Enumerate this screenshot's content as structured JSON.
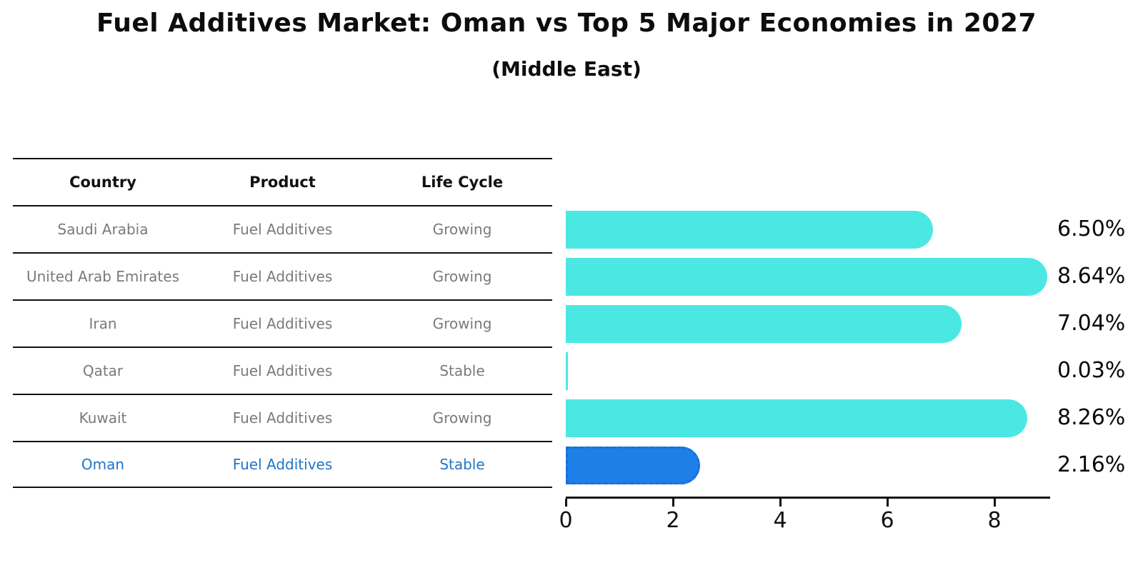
{
  "title": "Fuel Additives Market: Oman vs Top 5 Major Economies in 2027",
  "subtitle": "(Middle East)",
  "table": {
    "headers": {
      "country": "Country",
      "product": "Product",
      "life_cycle": "Life Cycle"
    },
    "rows": [
      {
        "country": "Saudi Arabia",
        "product": "Fuel Additives",
        "life_cycle": "Growing",
        "highlight": false
      },
      {
        "country": "United Arab Emirates",
        "product": "Fuel Additives",
        "life_cycle": "Growing",
        "highlight": false
      },
      {
        "country": "Iran",
        "product": "Fuel Additives",
        "life_cycle": "Growing",
        "highlight": false
      },
      {
        "country": "Qatar",
        "product": "Fuel Additives",
        "life_cycle": "Stable",
        "highlight": false
      },
      {
        "country": "Kuwait",
        "product": "Fuel Additives",
        "life_cycle": "Growing",
        "highlight": false
      },
      {
        "country": "Oman",
        "product": "Fuel Additives",
        "life_cycle": "Stable",
        "highlight": true
      }
    ]
  },
  "chart_data": {
    "type": "bar",
    "orientation": "horizontal",
    "title": "Fuel Additives Market: Oman vs Top 5 Major Economies in 2027",
    "subtitle": "(Middle East)",
    "categories": [
      "Saudi Arabia",
      "United Arab Emirates",
      "Iran",
      "Qatar",
      "Kuwait",
      "Oman"
    ],
    "values": [
      6.5,
      8.64,
      7.04,
      0.03,
      8.26,
      2.16
    ],
    "value_labels": [
      "6.50%",
      "8.64%",
      "7.04%",
      "0.03%",
      "8.26%",
      "2.16%"
    ],
    "x_ticks": [
      "0",
      "2",
      "4",
      "6",
      "8"
    ],
    "x_tick_values": [
      0,
      2,
      4,
      6,
      8
    ],
    "xlim": [
      0,
      9.05
    ],
    "grid": false,
    "legend_position": "none",
    "highlight_category": "Oman",
    "bar_style": "rounded-end",
    "highlight_bar_style": "rounded-end-dashed-border"
  },
  "colors": {
    "bar": "#4BE8E3",
    "highlight_bar": "#1E7FE8",
    "highlight_bar_border": "#1A70D6",
    "highlight_text": "#2176C7",
    "row_text": "#7A7A7A",
    "header_text": "#111111",
    "axis": "#111111",
    "background": "#FFFFFF"
  }
}
